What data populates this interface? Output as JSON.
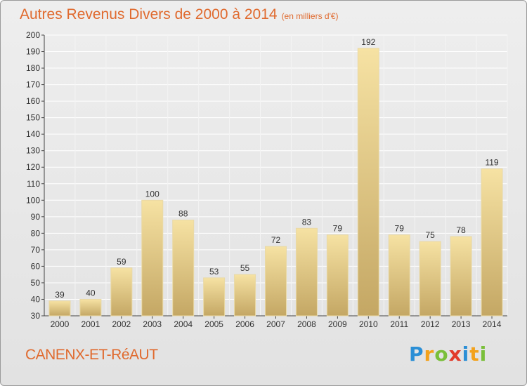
{
  "header": {
    "title": "Autres Revenus Divers de 2000 à 2014",
    "subtitle": "(en milliers d'€)"
  },
  "footer": {
    "place": "CANENX-ET-RéAUT",
    "logo_letters": [
      "P",
      "r",
      "o",
      "x",
      "i",
      "t",
      "i"
    ]
  },
  "colors": {
    "title": "#e06a2e",
    "bar_light": "#f5dfa0",
    "bar_dark": "#c9ad6a",
    "grid": "#ffffff"
  },
  "chart_data": {
    "type": "bar",
    "title": "Autres Revenus Divers de 2000 à 2014",
    "subtitle": "(en milliers d'€)",
    "categories": [
      "2000",
      "2001",
      "2002",
      "2003",
      "2004",
      "2005",
      "2006",
      "2007",
      "2008",
      "2009",
      "2010",
      "2011",
      "2012",
      "2013",
      "2014"
    ],
    "values": [
      39,
      40,
      59,
      100,
      88,
      53,
      55,
      72,
      83,
      79,
      192,
      79,
      75,
      78,
      119
    ],
    "ylim": [
      30,
      200
    ],
    "yticks": [
      30,
      40,
      50,
      60,
      70,
      80,
      90,
      100,
      110,
      120,
      130,
      140,
      150,
      160,
      170,
      180,
      190,
      200
    ],
    "grid": true,
    "xlabel": "",
    "ylabel": ""
  }
}
